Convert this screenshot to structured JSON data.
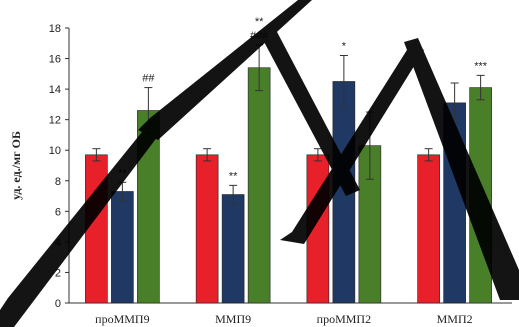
{
  "chart_data": {
    "type": "bar",
    "categories": [
      "проММП9",
      "ММП9",
      "проММП2",
      "ММП2"
    ],
    "ylabel": "уд. ед./мг ОБ",
    "xlabel": "",
    "ylim": [
      0,
      18
    ],
    "yticks": [
      0,
      2,
      4,
      6,
      8,
      10,
      12,
      14,
      16,
      18
    ],
    "grid": false,
    "series": [
      {
        "color": "#e8202a",
        "values": [
          9.7,
          9.7,
          9.7,
          9.7
        ],
        "errors": [
          0.4,
          0.4,
          0.4,
          0.4
        ]
      },
      {
        "color": "#1f3864",
        "values": [
          7.3,
          7.1,
          14.5,
          13.1
        ],
        "errors": [
          0.6,
          0.6,
          1.7,
          1.3
        ]
      },
      {
        "color": "#4a7f2a",
        "values": [
          12.6,
          15.4,
          10.3,
          14.1
        ],
        "errors": [
          1.5,
          1.5,
          2.2,
          0.8
        ]
      }
    ],
    "annotations": [
      {
        "category": 0,
        "series": 1,
        "text": "**"
      },
      {
        "category": 0,
        "series": 2,
        "text": "##"
      },
      {
        "category": 1,
        "series": 1,
        "text": "**"
      },
      {
        "category": 1,
        "series": 2,
        "text": "###"
      },
      {
        "category": 1,
        "series": 2,
        "text": "**"
      },
      {
        "category": 2,
        "series": 1,
        "text": "*"
      },
      {
        "category": 3,
        "series": 2,
        "text": "***"
      }
    ]
  },
  "watermark": {
    "text": "ГПМ",
    "color": "#000000"
  }
}
